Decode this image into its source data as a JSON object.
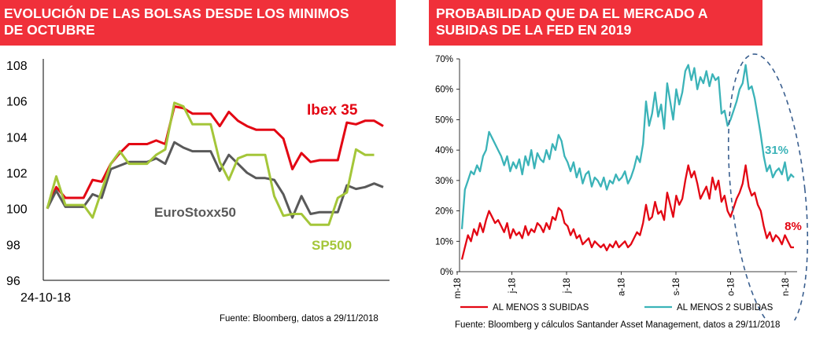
{
  "left_panel": {
    "title_line1": "EVOLUCIÓN DE LAS BOLSAS DESDE LOS MINIMOS",
    "title_line2": "DE OCTUBRE",
    "source": "Fuente: Bloomberg, datos a 29/11/2018"
  },
  "right_panel": {
    "title_line1": "PROBABILIDAD QUE DA EL MERCADO A",
    "title_line2": "SUBIDAS DE LA FED EN 2019",
    "source": "Fuente: Bloomberg y cálculos Santander Asset Management, datos a 29/11/2018"
  },
  "colors": {
    "banner": "#f0303a",
    "ibex": "#e30613",
    "eurostoxx": "#595959",
    "sp500": "#a4c639",
    "teal": "#3bb3b8",
    "red": "#e30613"
  },
  "chart_data": [
    {
      "type": "line",
      "x_start_label": "24-10-18",
      "ylim": [
        96,
        108
      ],
      "yticks": [
        "96",
        "98",
        "100",
        "102",
        "104",
        "106",
        "108"
      ],
      "series": [
        {
          "name": "Ibex 35",
          "values": [
            100.0,
            101.2,
            100.6,
            100.6,
            100.6,
            101.6,
            101.5,
            102.5,
            103.1,
            103.6,
            103.6,
            103.6,
            103.8,
            103.6,
            105.7,
            105.6,
            105.3,
            105.3,
            105.3,
            104.6,
            105.4,
            104.9,
            104.6,
            104.4,
            104.4,
            104.4,
            103.9,
            102.2,
            103.1,
            102.6,
            102.7,
            102.7,
            102.7,
            104.8,
            104.7,
            104.9,
            104.9,
            104.6
          ]
        },
        {
          "name": "EuroStoxx50",
          "values": [
            100.0,
            101.0,
            100.1,
            100.1,
            100.1,
            100.8,
            100.6,
            102.2,
            102.4,
            102.6,
            102.6,
            102.6,
            102.8,
            102.5,
            103.7,
            103.4,
            103.2,
            103.2,
            103.2,
            102.1,
            103.0,
            102.5,
            102.0,
            101.7,
            101.7,
            101.6,
            100.8,
            99.5,
            100.7,
            99.7,
            99.8,
            99.8,
            99.8,
            101.3,
            101.1,
            101.2,
            101.4,
            101.2
          ]
        },
        {
          "name": "SP500",
          "values": [
            100.0,
            101.8,
            100.2,
            100.2,
            100.2,
            99.5,
            101.0,
            102.5,
            103.2,
            102.5,
            102.5,
            102.5,
            103.0,
            103.3,
            105.9,
            105.7,
            104.7,
            104.7,
            104.7,
            102.6,
            101.6,
            102.8,
            103.0,
            103.0,
            103.0,
            100.7,
            99.6,
            99.7,
            99.7,
            99.1,
            99.1,
            99.1,
            100.6,
            100.9,
            103.3,
            103.0,
            103.0
          ]
        }
      ]
    },
    {
      "type": "line",
      "ylim": [
        0,
        70
      ],
      "yticks": [
        "0%",
        "10%",
        "20%",
        "30%",
        "40%",
        "50%",
        "60%",
        "70%"
      ],
      "xticks": [
        "m-18",
        "j-18",
        "j-18",
        "a-18",
        "s-18",
        "o-18",
        "n-18"
      ],
      "annotations": [
        "31%",
        "8%"
      ],
      "series": [
        {
          "name": "AL MENOS 3 SUBIDAS",
          "values": [
            4,
            8,
            12,
            10,
            14,
            12,
            16,
            13,
            17,
            20,
            18,
            16,
            17,
            15,
            13,
            16,
            11,
            14,
            12,
            13,
            11,
            15,
            12,
            14,
            13,
            16,
            15,
            13,
            16,
            14,
            18,
            17,
            21,
            20,
            16,
            15,
            12,
            14,
            11,
            12,
            9,
            10,
            11,
            8,
            10,
            9,
            8,
            9,
            7,
            9,
            8,
            10,
            8,
            9,
            10,
            8,
            9,
            11,
            13,
            12,
            16,
            22,
            17,
            18,
            23,
            19,
            20,
            17,
            26,
            22,
            18,
            25,
            22,
            24,
            30,
            35,
            31,
            33,
            29,
            24,
            26,
            28,
            24,
            31,
            27,
            30,
            23,
            25,
            20,
            18,
            21,
            24,
            26,
            29,
            35,
            28,
            25,
            26,
            22,
            20,
            15,
            11,
            13,
            10,
            12,
            11,
            9,
            12,
            10,
            8,
            8
          ]
        },
        {
          "name": "AL MENOS 2 SUBIDAS",
          "values": [
            14,
            27,
            30,
            33,
            32,
            35,
            33,
            38,
            40,
            46,
            44,
            42,
            40,
            38,
            35,
            38,
            33,
            36,
            34,
            37,
            32,
            38,
            35,
            40,
            34,
            39,
            37,
            36,
            40,
            37,
            42,
            40,
            45,
            43,
            38,
            36,
            33,
            36,
            31,
            34,
            29,
            32,
            33,
            28,
            31,
            30,
            28,
            31,
            27,
            30,
            29,
            32,
            30,
            31,
            33,
            29,
            31,
            34,
            38,
            36,
            42,
            56,
            48,
            52,
            59,
            51,
            55,
            47,
            62,
            56,
            50,
            60,
            55,
            59,
            66,
            68,
            63,
            67,
            60,
            64,
            62,
            66,
            61,
            65,
            63,
            64,
            52,
            53,
            48,
            50,
            53,
            56,
            60,
            62,
            68,
            60,
            61,
            57,
            51,
            45,
            38,
            33,
            35,
            31,
            33,
            34,
            32,
            36,
            30,
            32,
            31
          ]
        }
      ]
    }
  ]
}
